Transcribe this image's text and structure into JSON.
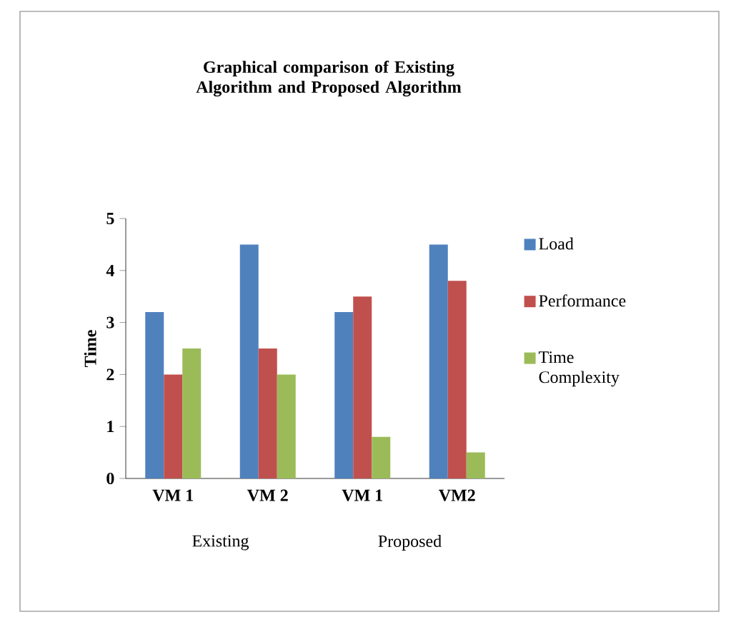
{
  "chart_data": {
    "type": "bar",
    "title": "Graphical comparison of  Existing Algorithm and Proposed Algorithm",
    "ylabel": "Time",
    "categories": [
      "VM 1",
      "VM 2",
      "VM 1",
      "VM2"
    ],
    "series": [
      {
        "name": "Load",
        "color": "#4f81bd",
        "values": [
          3.2,
          4.5,
          3.2,
          4.5
        ]
      },
      {
        "name": "Performance",
        "color": "#c0504d",
        "values": [
          2.0,
          2.5,
          3.5,
          3.8
        ]
      },
      {
        "name": "Time Complexity",
        "color": "#9bbb59",
        "values": [
          2.5,
          2.0,
          0.8,
          0.5
        ]
      }
    ],
    "annotations": [
      "Existing",
      "Proposed"
    ],
    "ylim": [
      0,
      5
    ],
    "yticks": [
      0,
      1,
      2,
      3,
      4,
      5
    ],
    "legend": "right",
    "grid": false
  }
}
